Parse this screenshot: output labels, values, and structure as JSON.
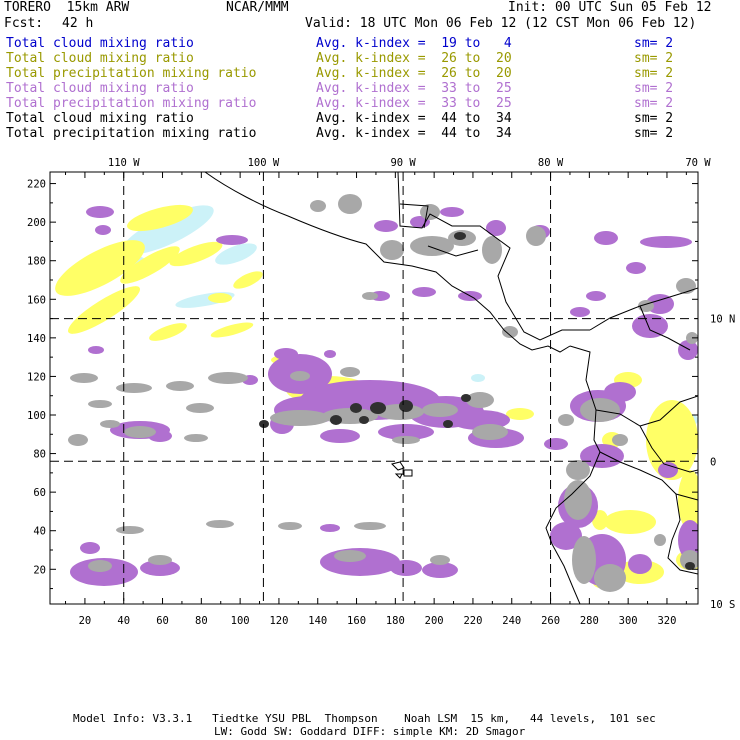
{
  "header": {
    "model": "TORERO  15km ARW",
    "org": "NCAR/MMM",
    "init": "Init: 00 UTC Sun 05 Feb 12",
    "fcst_label": "Fcst:",
    "fcst_value": "42 h",
    "valid": "Valid: 18 UTC Mon 06 Feb 12 (12 CST Mon 06 Feb 12)"
  },
  "legend": [
    {
      "field": "Total cloud mixing ratio",
      "kindex": "Avg. k-index =  19 to   4",
      "sm": "sm= 2",
      "color": "#0000cc"
    },
    {
      "field": "Total cloud mixing ratio",
      "kindex": "Avg. k-index =  26 to  20",
      "sm": "sm= 2",
      "color": "#999900"
    },
    {
      "field": "Total precipitation mixing ratio",
      "kindex": "Avg. k-index =  26 to  20",
      "sm": "sm= 2",
      "color": "#999900"
    },
    {
      "field": "Total cloud mixing ratio",
      "kindex": "Avg. k-index =  33 to  25",
      "sm": "sm= 2",
      "color": "#b070d0"
    },
    {
      "field": "Total precipitation mixing ratio",
      "kindex": "Avg. k-index =  33 to  25",
      "sm": "sm= 2",
      "color": "#b070d0"
    },
    {
      "field": "Total cloud mixing ratio",
      "kindex": "Avg. k-index =  44 to  34",
      "sm": "sm= 2",
      "color": "#000000"
    },
    {
      "field": "Total precipitation mixing ratio",
      "kindex": "Avg. k-index =  44 to  34",
      "sm": "sm= 2",
      "color": "#000000"
    }
  ],
  "map": {
    "lon_labels": [
      "110 W",
      "100 W",
      "90 W",
      "80 W",
      "70 W"
    ],
    "lat_labels": [
      "10 N",
      "0",
      "10 S"
    ],
    "x_ticks": [
      "20",
      "40",
      "60",
      "80",
      "100",
      "120",
      "140",
      "160",
      "180",
      "200",
      "220",
      "240",
      "260",
      "280",
      "300",
      "320"
    ],
    "y_ticks": [
      "20",
      "40",
      "60",
      "80",
      "100",
      "120",
      "140",
      "160",
      "180",
      "200",
      "220"
    ],
    "grid_x": [
      40,
      112,
      184,
      260
    ],
    "grid_y": [
      76,
      150
    ],
    "x_range": [
      2,
      336
    ],
    "y_range": [
      2,
      226
    ],
    "colors": {
      "yellow": "#ffff66",
      "cyan": "#ccf2f8",
      "purple": "#b070d0",
      "gray": "#a8a8a8",
      "dark": "#303030",
      "land": "#000000"
    }
  },
  "footer": {
    "line1": "Model Info: V3.3.1   Tiedtke YSU PBL  Thompson    Noah LSM  15 km,   44 levels,  101 sec",
    "line2": "LW: Godd SW: Goddard DIFF: simple KM: 2D Smagor"
  }
}
